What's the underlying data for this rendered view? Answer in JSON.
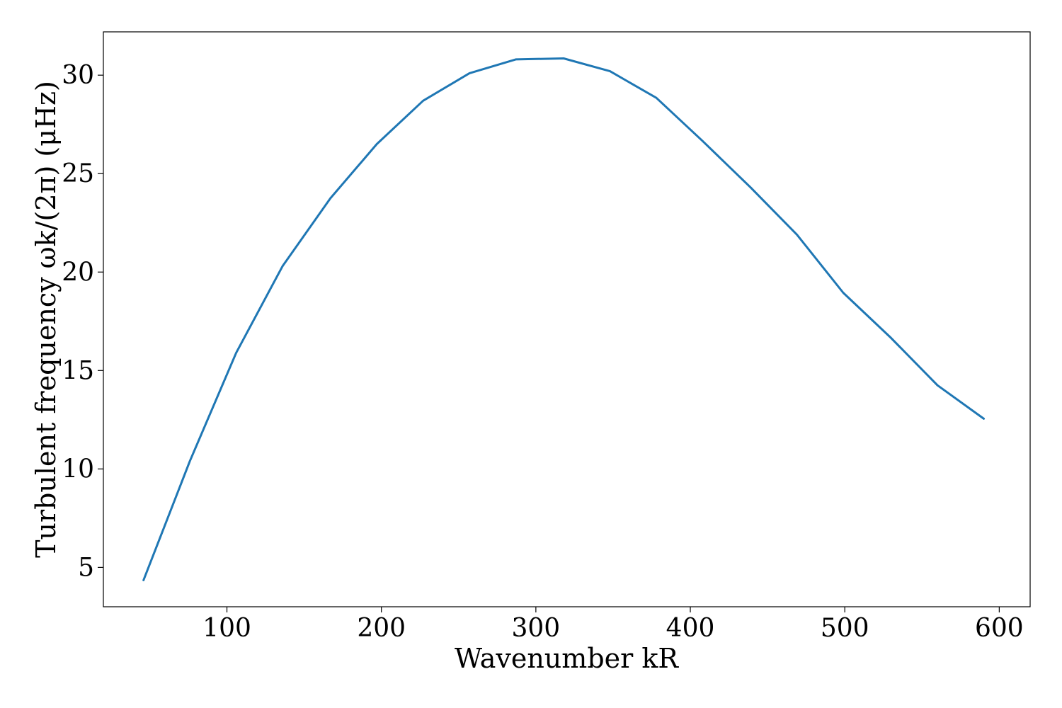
{
  "chart_data": {
    "type": "line",
    "xlabel": "Wavenumber kR",
    "ylabel": "Turbulent frequency ωk/(2π) (μHz)",
    "xlim": [
      20,
      620
    ],
    "ylim": [
      3.0,
      32.2
    ],
    "xticks": [
      100,
      200,
      300,
      400,
      500,
      600
    ],
    "yticks": [
      5,
      10,
      15,
      20,
      25,
      30
    ],
    "grid": false,
    "series": [
      {
        "color": "#1f77b4",
        "x": [
          46,
          76,
          106,
          136,
          167,
          197,
          227,
          257,
          287,
          318,
          348,
          378,
          408,
          439,
          469,
          499,
          530,
          560,
          590
        ],
        "y": [
          4.35,
          10.4,
          15.9,
          20.3,
          23.75,
          26.5,
          28.7,
          30.1,
          30.8,
          30.85,
          30.2,
          28.85,
          26.65,
          24.3,
          21.9,
          18.95,
          16.65,
          14.25,
          12.55
        ]
      }
    ]
  }
}
